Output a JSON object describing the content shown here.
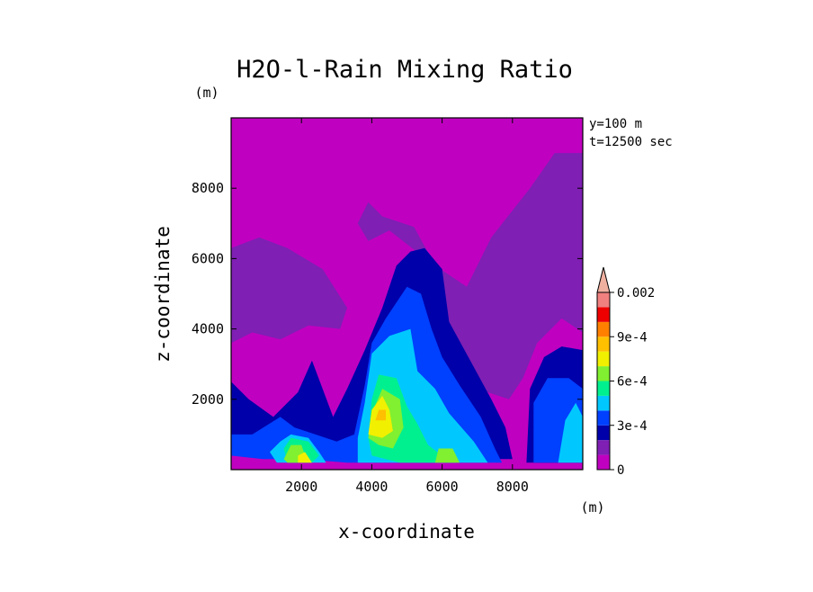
{
  "chart_data": {
    "type": "heatmap",
    "subtype": "filled-contour",
    "title": "H2O-l-Rain Mixing Ratio",
    "xlabel": "x-coordinate",
    "ylabel": "z-coordinate",
    "x_unit": "(m)",
    "y_unit": "(m)",
    "annotations": [
      "y=100 m",
      "t=12500 sec"
    ],
    "xlim": [
      0,
      10000
    ],
    "ylim": [
      0,
      10000
    ],
    "x_ticks": [
      2000,
      4000,
      6000,
      8000
    ],
    "y_ticks": [
      2000,
      4000,
      6000,
      8000
    ],
    "colorbar": {
      "labels": [
        {
          "value": 0,
          "text": "0"
        },
        {
          "value": 0.0003,
          "text": "3e-4"
        },
        {
          "value": 0.0006,
          "text": "6e-4"
        },
        {
          "value": 0.0009,
          "text": "9e-4"
        },
        {
          "value": 0.002,
          "text": "0.002"
        }
      ],
      "levels": [
        {
          "lo": 0,
          "hi": 0.0001,
          "color": "#c000c0"
        },
        {
          "lo": 0.0001,
          "hi": 0.0002,
          "color": "#7f1fb4"
        },
        {
          "lo": 0.0002,
          "hi": 0.0003,
          "color": "#0000aa"
        },
        {
          "lo": 0.0003,
          "hi": 0.0004,
          "color": "#0040ff"
        },
        {
          "lo": 0.0004,
          "hi": 0.0005,
          "color": "#00c8ff"
        },
        {
          "lo": 0.0005,
          "hi": 0.0006,
          "color": "#00f090"
        },
        {
          "lo": 0.0006,
          "hi": 0.0007,
          "color": "#80f030"
        },
        {
          "lo": 0.0007,
          "hi": 0.0008,
          "color": "#f0f000"
        },
        {
          "lo": 0.0008,
          "hi": 0.0009,
          "color": "#ffc000"
        },
        {
          "lo": 0.0009,
          "hi": 0.001,
          "color": "#ff8000"
        },
        {
          "lo": 0.001,
          "hi": 0.0015,
          "color": "#ee0000"
        },
        {
          "lo": 0.0015,
          "hi": 0.002,
          "color": "#f08080"
        },
        {
          "lo": 0.002,
          "hi": null,
          "color": "#f0b0a0"
        }
      ]
    },
    "regions": [
      {
        "level": 1,
        "poly": [
          [
            0,
            3600
          ],
          [
            600,
            3900
          ],
          [
            1400,
            3700
          ],
          [
            2200,
            4100
          ],
          [
            3100,
            4000
          ],
          [
            3300,
            4600
          ],
          [
            2600,
            5700
          ],
          [
            1600,
            6300
          ],
          [
            800,
            6600
          ],
          [
            0,
            6300
          ]
        ]
      },
      {
        "level": 1,
        "poly": [
          [
            3900,
            6500
          ],
          [
            4500,
            6800
          ],
          [
            5400,
            6100
          ],
          [
            6300,
            3200
          ],
          [
            7000,
            2300
          ],
          [
            7900,
            2000
          ],
          [
            8300,
            2600
          ],
          [
            8700,
            3600
          ],
          [
            9400,
            4300
          ],
          [
            10000,
            3900
          ],
          [
            10000,
            9000
          ],
          [
            9200,
            9000
          ],
          [
            8500,
            8000
          ],
          [
            7400,
            6600
          ],
          [
            6700,
            5200
          ],
          [
            5800,
            5800
          ],
          [
            5200,
            6900
          ],
          [
            4300,
            7200
          ],
          [
            3900,
            7600
          ],
          [
            3600,
            7000
          ]
        ]
      },
      {
        "level": 2,
        "poly": [
          [
            0,
            600
          ],
          [
            0,
            2500
          ],
          [
            500,
            2000
          ],
          [
            1200,
            1500
          ],
          [
            1900,
            2200
          ],
          [
            2300,
            3100
          ],
          [
            2600,
            2300
          ],
          [
            2900,
            1500
          ],
          [
            3300,
            2300
          ],
          [
            3800,
            3400
          ],
          [
            4300,
            4600
          ],
          [
            4700,
            5800
          ],
          [
            5100,
            6200
          ],
          [
            5500,
            6300
          ],
          [
            6000,
            5700
          ],
          [
            6200,
            4200
          ],
          [
            6800,
            3100
          ],
          [
            7400,
            2000
          ],
          [
            7800,
            1200
          ],
          [
            8000,
            300
          ],
          [
            6000,
            300
          ],
          [
            3000,
            300
          ]
        ]
      },
      {
        "level": 2,
        "poly": [
          [
            8400,
            200
          ],
          [
            8500,
            2300
          ],
          [
            8900,
            3200
          ],
          [
            9400,
            3500
          ],
          [
            10000,
            3400
          ],
          [
            10000,
            200
          ]
        ]
      },
      {
        "level": 3,
        "poly": [
          [
            0,
            400
          ],
          [
            0,
            1000
          ],
          [
            600,
            1000
          ],
          [
            1400,
            1500
          ],
          [
            1800,
            1200
          ],
          [
            2400,
            1000
          ],
          [
            3000,
            800
          ],
          [
            3500,
            1000
          ],
          [
            3800,
            2400
          ],
          [
            4000,
            3600
          ],
          [
            4400,
            4300
          ],
          [
            5000,
            5200
          ],
          [
            5400,
            5000
          ],
          [
            5700,
            4000
          ],
          [
            6000,
            3200
          ],
          [
            6500,
            2400
          ],
          [
            7100,
            1500
          ],
          [
            7500,
            600
          ],
          [
            7700,
            200
          ],
          [
            3300,
            200
          ],
          [
            2000,
            300
          ],
          [
            900,
            300
          ]
        ]
      },
      {
        "level": 3,
        "poly": [
          [
            8600,
            200
          ],
          [
            8600,
            1900
          ],
          [
            9000,
            2600
          ],
          [
            9600,
            2600
          ],
          [
            10000,
            2300
          ],
          [
            10000,
            200
          ]
        ]
      },
      {
        "level": 4,
        "poly": [
          [
            1400,
            800
          ],
          [
            1700,
            1000
          ],
          [
            2200,
            900
          ],
          [
            2500,
            500
          ],
          [
            2700,
            200
          ],
          [
            1300,
            200
          ],
          [
            1100,
            500
          ]
        ]
      },
      {
        "level": 4,
        "poly": [
          [
            3600,
            900
          ],
          [
            3800,
            1900
          ],
          [
            4000,
            3300
          ],
          [
            4500,
            3800
          ],
          [
            5100,
            4000
          ],
          [
            5300,
            2800
          ],
          [
            5800,
            2300
          ],
          [
            6200,
            1600
          ],
          [
            6900,
            800
          ],
          [
            7300,
            200
          ],
          [
            3600,
            200
          ]
        ]
      },
      {
        "level": 4,
        "poly": [
          [
            9300,
            200
          ],
          [
            9500,
            1400
          ],
          [
            9800,
            1900
          ],
          [
            10000,
            1500
          ],
          [
            10000,
            200
          ]
        ]
      },
      {
        "level": 5,
        "poly": [
          [
            3900,
            900
          ],
          [
            4000,
            2000
          ],
          [
            4200,
            2700
          ],
          [
            4700,
            2600
          ],
          [
            5000,
            1800
          ],
          [
            5300,
            1300
          ],
          [
            5600,
            700
          ],
          [
            6000,
            400
          ],
          [
            6400,
            200
          ],
          [
            4800,
            200
          ],
          [
            4000,
            400
          ]
        ]
      },
      {
        "level": 5,
        "poly": [
          [
            1500,
            600
          ],
          [
            1700,
            900
          ],
          [
            2200,
            800
          ],
          [
            2500,
            400
          ],
          [
            2300,
            200
          ],
          [
            1600,
            200
          ]
        ]
      },
      {
        "level": 6,
        "poly": [
          [
            3900,
            900
          ],
          [
            4000,
            1600
          ],
          [
            4300,
            2300
          ],
          [
            4800,
            2000
          ],
          [
            4900,
            1200
          ],
          [
            4600,
            600
          ],
          [
            4200,
            700
          ]
        ]
      },
      {
        "level": 6,
        "poly": [
          [
            5800,
            200
          ],
          [
            5900,
            600
          ],
          [
            6300,
            600
          ],
          [
            6500,
            200
          ]
        ]
      },
      {
        "level": 6,
        "poly": [
          [
            1500,
            300
          ],
          [
            1700,
            700
          ],
          [
            2000,
            700
          ],
          [
            2100,
            400
          ],
          [
            1900,
            200
          ],
          [
            1600,
            200
          ]
        ]
      },
      {
        "level": 7,
        "poly": [
          [
            3900,
            1000
          ],
          [
            4000,
            1700
          ],
          [
            4300,
            2100
          ],
          [
            4500,
            1700
          ],
          [
            4600,
            1100
          ],
          [
            4300,
            900
          ]
        ]
      },
      {
        "level": 7,
        "poly": [
          [
            1900,
            200
          ],
          [
            1900,
            400
          ],
          [
            2100,
            500
          ],
          [
            2300,
            200
          ]
        ]
      },
      {
        "level": 8,
        "poly": [
          [
            4100,
            1400
          ],
          [
            4200,
            1700
          ],
          [
            4400,
            1700
          ],
          [
            4400,
            1400
          ]
        ]
      }
    ]
  }
}
